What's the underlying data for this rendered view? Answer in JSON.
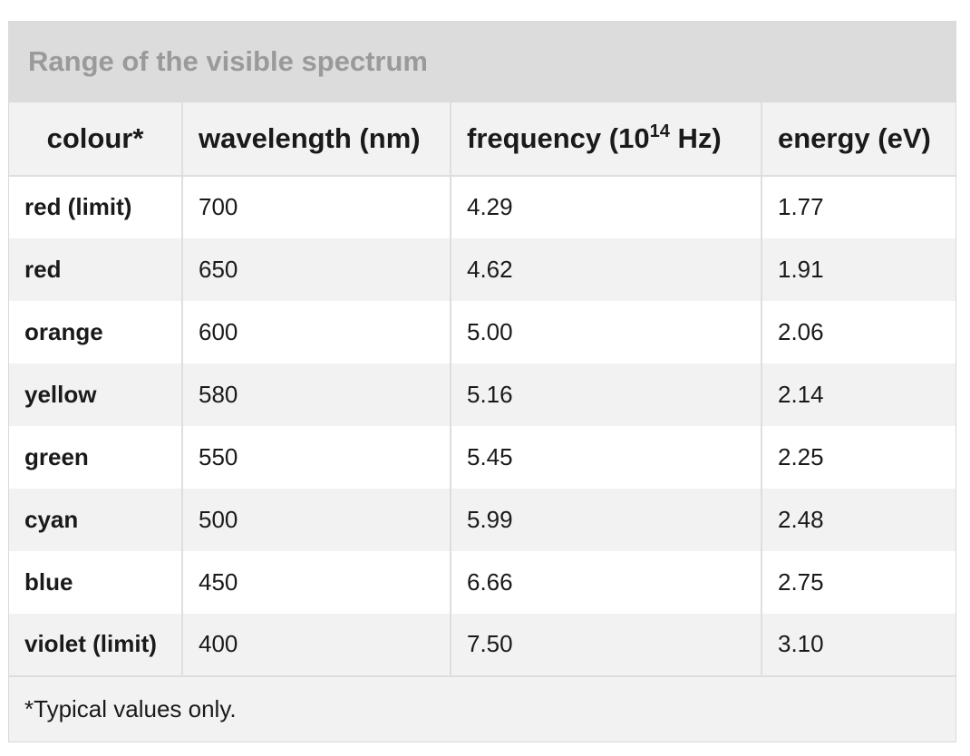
{
  "caption": "Range of the visible spectrum",
  "headers": {
    "colour": "colour*",
    "wavelength": "wavelength (nm)",
    "frequency_prefix": "frequency (10",
    "frequency_exp": "14",
    "frequency_suffix": " Hz)",
    "energy": "energy (eV)"
  },
  "rows": [
    {
      "colour": "red (limit)",
      "wavelength": "700",
      "frequency": "4.29",
      "energy": "1.77"
    },
    {
      "colour": "red",
      "wavelength": "650",
      "frequency": "4.62",
      "energy": "1.91"
    },
    {
      "colour": "orange",
      "wavelength": "600",
      "frequency": "5.00",
      "energy": "2.06"
    },
    {
      "colour": "yellow",
      "wavelength": "580",
      "frequency": "5.16",
      "energy": "2.14"
    },
    {
      "colour": "green",
      "wavelength": "550",
      "frequency": "5.45",
      "energy": "2.25"
    },
    {
      "colour": "cyan",
      "wavelength": "500",
      "frequency": "5.99",
      "energy": "2.48"
    },
    {
      "colour": "blue",
      "wavelength": "450",
      "frequency": "6.66",
      "energy": "2.75"
    },
    {
      "colour": "violet (limit)",
      "wavelength": "400",
      "frequency": "7.50",
      "energy": "3.10"
    }
  ],
  "footnote": "*Typical values only."
}
